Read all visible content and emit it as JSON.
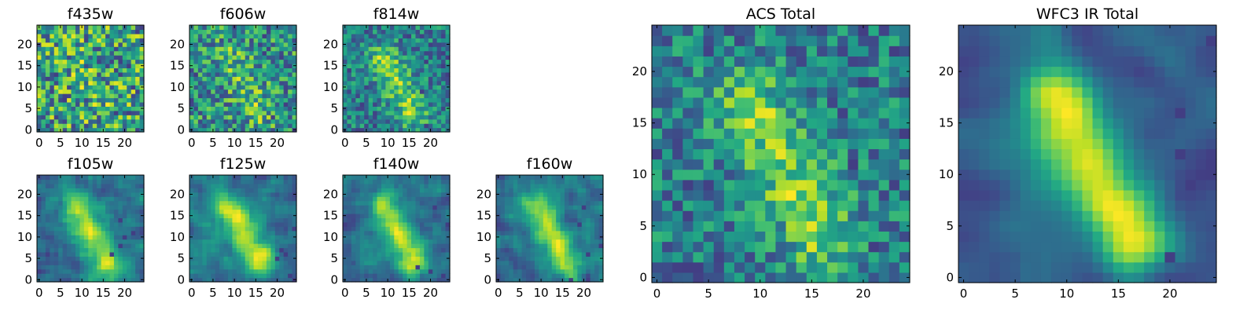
{
  "colormap": "viridis",
  "colors": {
    "background": "#ffffff",
    "frame": "#000000",
    "viridis_low": "#440154",
    "viridis_mid": "#21908c",
    "viridis_high": "#fde725"
  },
  "chart_data": [
    {
      "type": "heatmap",
      "title": "f435w",
      "grid": [
        25,
        25
      ],
      "xticks": [
        0,
        5,
        10,
        15,
        20
      ],
      "yticks": [
        0,
        5,
        10,
        15,
        20
      ],
      "xlim": [
        -0.5,
        24.5
      ],
      "ylim": [
        -0.5,
        24.5
      ],
      "pattern": "noise",
      "seed": 11
    },
    {
      "type": "heatmap",
      "title": "f606w",
      "grid": [
        25,
        25
      ],
      "xticks": [
        0,
        5,
        10,
        15,
        20
      ],
      "yticks": [
        0,
        5,
        10,
        15,
        20
      ],
      "xlim": [
        -0.5,
        24.5
      ],
      "ylim": [
        -0.5,
        24.5
      ],
      "pattern": "noise-weak-blob",
      "seed": 23
    },
    {
      "type": "heatmap",
      "title": "f814w",
      "grid": [
        25,
        25
      ],
      "xticks": [
        0,
        5,
        10,
        15,
        20
      ],
      "yticks": [
        0,
        5,
        10,
        15,
        20
      ],
      "xlim": [
        -0.5,
        24.5
      ],
      "ylim": [
        -0.5,
        24.5
      ],
      "pattern": "blob-noisy",
      "seed": 37
    },
    {
      "type": "heatmap",
      "title": "f105w",
      "grid": [
        25,
        25
      ],
      "xticks": [
        0,
        5,
        10,
        15,
        20
      ],
      "yticks": [
        0,
        5,
        10,
        15,
        20
      ],
      "xlim": [
        -0.5,
        24.5
      ],
      "ylim": [
        -0.5,
        24.5
      ],
      "pattern": "blob",
      "seed": 41
    },
    {
      "type": "heatmap",
      "title": "f125w",
      "grid": [
        25,
        25
      ],
      "xticks": [
        0,
        5,
        10,
        15,
        20
      ],
      "yticks": [
        0,
        5,
        10,
        15,
        20
      ],
      "xlim": [
        -0.5,
        24.5
      ],
      "ylim": [
        -0.5,
        24.5
      ],
      "pattern": "blob",
      "seed": 53
    },
    {
      "type": "heatmap",
      "title": "f140w",
      "grid": [
        25,
        25
      ],
      "xticks": [
        0,
        5,
        10,
        15,
        20
      ],
      "yticks": [
        0,
        5,
        10,
        15,
        20
      ],
      "xlim": [
        -0.5,
        24.5
      ],
      "ylim": [
        -0.5,
        24.5
      ],
      "pattern": "blob",
      "seed": 67
    },
    {
      "type": "heatmap",
      "title": "f160w",
      "grid": [
        25,
        25
      ],
      "xticks": [
        0,
        5,
        10,
        15,
        20
      ],
      "yticks": [
        0,
        5,
        10,
        15,
        20
      ],
      "xlim": [
        -0.5,
        24.5
      ],
      "ylim": [
        -0.5,
        24.5
      ],
      "pattern": "blob",
      "seed": 79
    },
    {
      "type": "heatmap",
      "title": "ACS Total",
      "grid": [
        25,
        25
      ],
      "xticks": [
        0,
        5,
        10,
        15,
        20
      ],
      "yticks": [
        0,
        5,
        10,
        15,
        20
      ],
      "xlim": [
        -0.5,
        24.5
      ],
      "ylim": [
        -0.5,
        24.5
      ],
      "pattern": "blob-noisy",
      "seed": 97
    },
    {
      "type": "heatmap",
      "title": "WFC3 IR Total",
      "grid": [
        25,
        25
      ],
      "xticks": [
        0,
        5,
        10,
        15,
        20
      ],
      "yticks": [
        0,
        5,
        10,
        15,
        20
      ],
      "xlim": [
        -0.5,
        24.5
      ],
      "ylim": [
        -0.5,
        24.5
      ],
      "pattern": "blob-smooth",
      "seed": 101
    }
  ]
}
